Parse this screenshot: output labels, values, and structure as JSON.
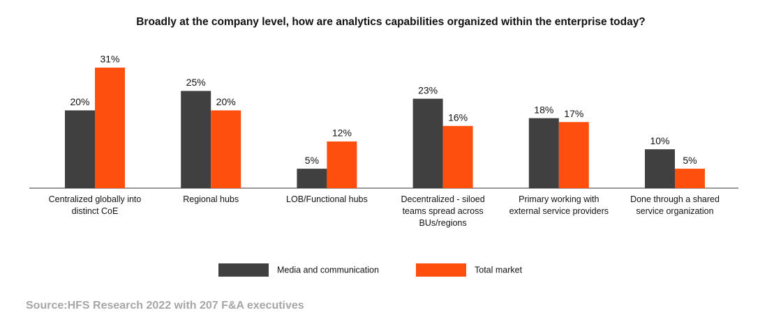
{
  "chart_data": {
    "type": "bar",
    "title": "Broadly at the company level, how are analytics capabilities organized within the enterprise today?",
    "categories": [
      "Centralized globally into distinct CoE",
      "Regional hubs",
      "LOB/Functional hubs",
      "Decentralized - siloed teams spread across BUs/regions",
      "Primary working with external service providers",
      "Done through a shared service organization"
    ],
    "series": [
      {
        "name": "Media and communication",
        "color": "#404040",
        "values": [
          20,
          25,
          5,
          23,
          18,
          10
        ],
        "value_labels": [
          "20%",
          "25%",
          "5%",
          "23%",
          "18%",
          "10%"
        ]
      },
      {
        "name": "Total market",
        "color": "#ff4f0f",
        "values": [
          31,
          20,
          12,
          16,
          17,
          5
        ],
        "value_labels": [
          "31%",
          "20%",
          "12%",
          "16%",
          "17%",
          "5%"
        ]
      }
    ],
    "source": "Source:HFS Research 2022 with 207 F&A executives"
  }
}
